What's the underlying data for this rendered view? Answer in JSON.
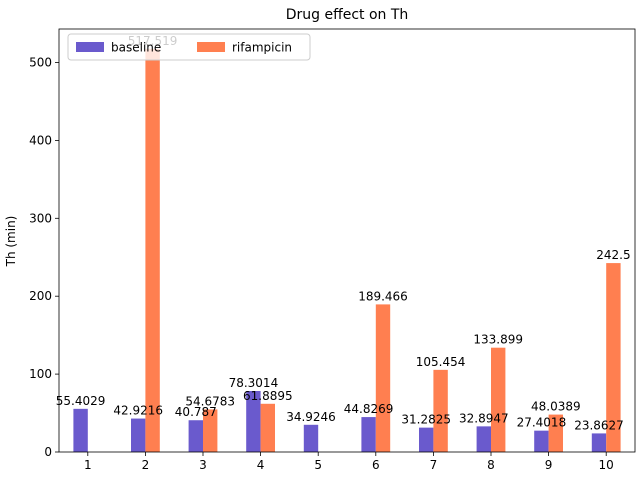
{
  "chart_data": {
    "type": "bar",
    "title": "Drug effect on Th",
    "xlabel": "",
    "ylabel": "Th (min)",
    "categories": [
      "1",
      "2",
      "3",
      "4",
      "5",
      "6",
      "7",
      "8",
      "9",
      "10"
    ],
    "ylim": [
      0,
      543
    ],
    "yticks": [
      0,
      100,
      200,
      300,
      400,
      500
    ],
    "grid": false,
    "legend_position": "top-left",
    "series": [
      {
        "name": "baseline",
        "color": "#6a5acd",
        "values": [
          55.4029,
          42.9216,
          40.787,
          78.3014,
          34.9246,
          44.8269,
          31.2825,
          32.8947,
          27.4018,
          23.8627
        ],
        "labels": [
          "55.4029",
          "42.9216",
          "40.787",
          "78.3014",
          "34.9246",
          "44.8269",
          "31.2825",
          "32.8947",
          "27.4018",
          "23.8627"
        ]
      },
      {
        "name": "rifampicin",
        "color": "#ff7f50",
        "values": [
          null,
          517.519,
          54.6783,
          61.8895,
          null,
          189.466,
          105.454,
          133.899,
          48.0389,
          242.5
        ],
        "labels": [
          "",
          "517.519",
          "54.6783",
          "61.8895",
          "",
          "189.466",
          "105.454",
          "133.899",
          "48.0389",
          "242.5"
        ]
      }
    ]
  }
}
